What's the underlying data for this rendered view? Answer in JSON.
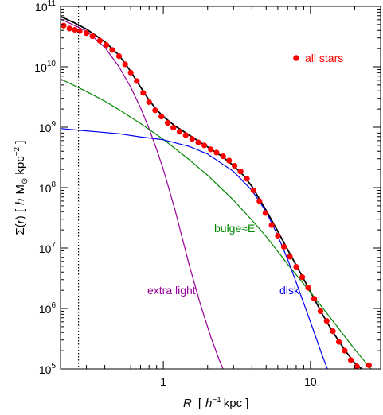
{
  "chart_data": {
    "type": "scatter",
    "xlabel": {
      "var": "R",
      "open": "[",
      "unit": "h",
      "exp": "−1",
      "kpc": "kpc ]"
    },
    "ylabel": {
      "sym": "Σ(",
      "var": "r",
      "close": ") [",
      "unit": "h",
      "msun": "M",
      "sun_sub": "⊙",
      "kpc": "kpc",
      "exp": "−2",
      "end": " ]"
    },
    "xscale": "log",
    "yscale": "log",
    "xlim": [
      0.2,
      30
    ],
    "ylim": [
      100000,
      100000000000
    ],
    "x_ticks": [
      {
        "value": 1,
        "label": "1"
      },
      {
        "value": 10,
        "label": "10"
      }
    ],
    "y_ticks": [
      {
        "value": 100000,
        "base": "10",
        "exp": "5"
      },
      {
        "value": 1000000,
        "base": "10",
        "exp": "6"
      },
      {
        "value": 10000000,
        "base": "10",
        "exp": "7"
      },
      {
        "value": 100000000,
        "base": "10",
        "exp": "8"
      },
      {
        "value": 1000000000,
        "base": "10",
        "exp": "9"
      },
      {
        "value": 10000000000,
        "base": "10",
        "exp": "10"
      },
      {
        "value": 100000000000,
        "base": "10",
        "exp": "11"
      }
    ],
    "vline_x": 0.265,
    "grid": false,
    "legend": {
      "label": "all stars",
      "color": "#ff0000",
      "placement": "top-right"
    },
    "series": [
      {
        "name": "all stars",
        "kind": "points",
        "color": "#ff0000",
        "points": [
          [
            0.21,
            48000000000.0
          ],
          [
            0.23,
            43000000000.0
          ],
          [
            0.25,
            41000000000.0
          ],
          [
            0.27,
            39000000000.0
          ],
          [
            0.3,
            36000000000.0
          ],
          [
            0.33,
            32000000000.0
          ],
          [
            0.37,
            27000000000.0
          ],
          [
            0.41,
            23000000000.0
          ],
          [
            0.45,
            19000000000.0
          ],
          [
            0.5,
            15000000000.0
          ],
          [
            0.55,
            11000000000.0
          ],
          [
            0.6,
            8000000000.0
          ],
          [
            0.66,
            5800000000.0
          ],
          [
            0.73,
            3700000000.0
          ],
          [
            0.8,
            2600000000.0
          ],
          [
            0.88,
            1900000000.0
          ],
          [
            0.97,
            1500000000.0
          ],
          [
            1.07,
            1180000000.0
          ],
          [
            1.17,
            980000000.0
          ],
          [
            1.29,
            840000000.0
          ],
          [
            1.42,
            740000000.0
          ],
          [
            1.57,
            640000000.0
          ],
          [
            1.73,
            560000000.0
          ],
          [
            1.9,
            500000000.0
          ],
          [
            2.1,
            430000000.0
          ],
          [
            2.3,
            380000000.0
          ],
          [
            2.55,
            330000000.0
          ],
          [
            2.8,
            280000000.0
          ],
          [
            3.05,
            230000000.0
          ],
          [
            3.35,
            185000000.0
          ],
          [
            3.7,
            140000000.0
          ],
          [
            4.1,
            90000000.0
          ],
          [
            4.5,
            60000000.0
          ],
          [
            4.95,
            38000000.0
          ],
          [
            5.45,
            24000000.0
          ],
          [
            6.0,
            16000000.0
          ],
          [
            6.6,
            10500000.0
          ],
          [
            7.25,
            7200000.0
          ],
          [
            8.0,
            4900000.0
          ],
          [
            8.8,
            3300000.0
          ],
          [
            9.65,
            2200000.0
          ],
          [
            10.6,
            1450000.0
          ],
          [
            11.7,
            900000.0
          ],
          [
            12.9,
            620000.0
          ],
          [
            14.2,
            420000.0
          ],
          [
            15.6,
            280000.0
          ],
          [
            17.1,
            200000.0
          ],
          [
            18.8,
            140000.0
          ],
          [
            20.7,
            110000.0
          ],
          [
            25.0,
            115000.0
          ]
        ]
      },
      {
        "name": "total",
        "kind": "line",
        "color": "#000000",
        "points": [
          [
            0.2,
            68000000000.0
          ],
          [
            0.25,
            53000000000.0
          ],
          [
            0.3,
            42000000000.0
          ],
          [
            0.4,
            26000000000.0
          ],
          [
            0.5,
            15500000000.0
          ],
          [
            0.6,
            8400000000.0
          ],
          [
            0.7,
            4600000000.0
          ],
          [
            0.8,
            2800000000.0
          ],
          [
            0.9,
            1950000000.0
          ],
          [
            1.0,
            1500000000.0
          ],
          [
            1.2,
            1050000000.0
          ],
          [
            1.5,
            740000000.0
          ],
          [
            2.0,
            470000000.0
          ],
          [
            2.5,
            330000000.0
          ],
          [
            3.0,
            230000000.0
          ],
          [
            3.5,
            160000000.0
          ],
          [
            4.0,
            105000000.0
          ],
          [
            5.0,
            42000000.0
          ],
          [
            6.0,
            19000000.0
          ],
          [
            7.0,
            9400000.0
          ],
          [
            8.0,
            5200000.0
          ],
          [
            10.0,
            1900000.0
          ],
          [
            12.0,
            820000.0
          ],
          [
            14.0,
            430000.0
          ],
          [
            17.0,
            210000.0
          ],
          [
            20.0,
            125000.0
          ],
          [
            25.0,
            80000.0
          ]
        ]
      },
      {
        "name": "extra light",
        "kind": "line",
        "color": "#990099",
        "label": "extra light",
        "points": [
          [
            0.2,
            62000000000.0
          ],
          [
            0.3,
            39000000000.0
          ],
          [
            0.4,
            21000000000.0
          ],
          [
            0.5,
            10000000000.0
          ],
          [
            0.6,
            4600000000.0
          ],
          [
            0.7,
            2100000000.0
          ],
          [
            0.8,
            950000000.0
          ],
          [
            0.9,
            430000000.0
          ],
          [
            1.0,
            200000000.0
          ],
          [
            1.2,
            43000000.0
          ],
          [
            1.5,
            5200000.0
          ],
          [
            1.8,
            1100000.0
          ],
          [
            2.1,
            340000.0
          ],
          [
            2.4,
            140000.0
          ],
          [
            2.65,
            80000.0
          ]
        ]
      },
      {
        "name": "bulge≈E",
        "kind": "line",
        "color": "#008800",
        "label": "bulge≈E",
        "points": [
          [
            0.2,
            6300000000.0
          ],
          [
            0.3,
            3900000000.0
          ],
          [
            0.4,
            2700000000.0
          ],
          [
            0.5,
            1950000000.0
          ],
          [
            0.7,
            1150000000.0
          ],
          [
            1.0,
            630000000.0
          ],
          [
            1.5,
            290000000.0
          ],
          [
            2.0,
            160000000.0
          ],
          [
            3.0,
            62000000.0
          ],
          [
            4.0,
            29000000.0
          ],
          [
            5.0,
            15500000.0
          ],
          [
            7.0,
            5400000.0
          ],
          [
            10.0,
            1850000.0
          ],
          [
            14.0,
            650000.0
          ],
          [
            20.0,
            210000.0
          ],
          [
            25.0,
            110000.0
          ],
          [
            28.0,
            80000.0
          ]
        ]
      },
      {
        "name": "disk",
        "kind": "line",
        "color": "#0000ee",
        "label": "disk",
        "points": [
          [
            0.2,
            950000000.0
          ],
          [
            0.3,
            870000000.0
          ],
          [
            0.5,
            780000000.0
          ],
          [
            0.7,
            690000000.0
          ],
          [
            1.0,
            620000000.0
          ],
          [
            1.5,
            480000000.0
          ],
          [
            2.0,
            360000000.0
          ],
          [
            3.0,
            185000000.0
          ],
          [
            4.0,
            90000000.0
          ],
          [
            5.0,
            40000000.0
          ],
          [
            6.0,
            16000000.0
          ],
          [
            7.0,
            6500000.0
          ],
          [
            8.0,
            2700000.0
          ],
          [
            10.0,
            600000.0
          ],
          [
            12.0,
            170000.0
          ],
          [
            13.5,
            80000.0
          ]
        ]
      }
    ]
  }
}
